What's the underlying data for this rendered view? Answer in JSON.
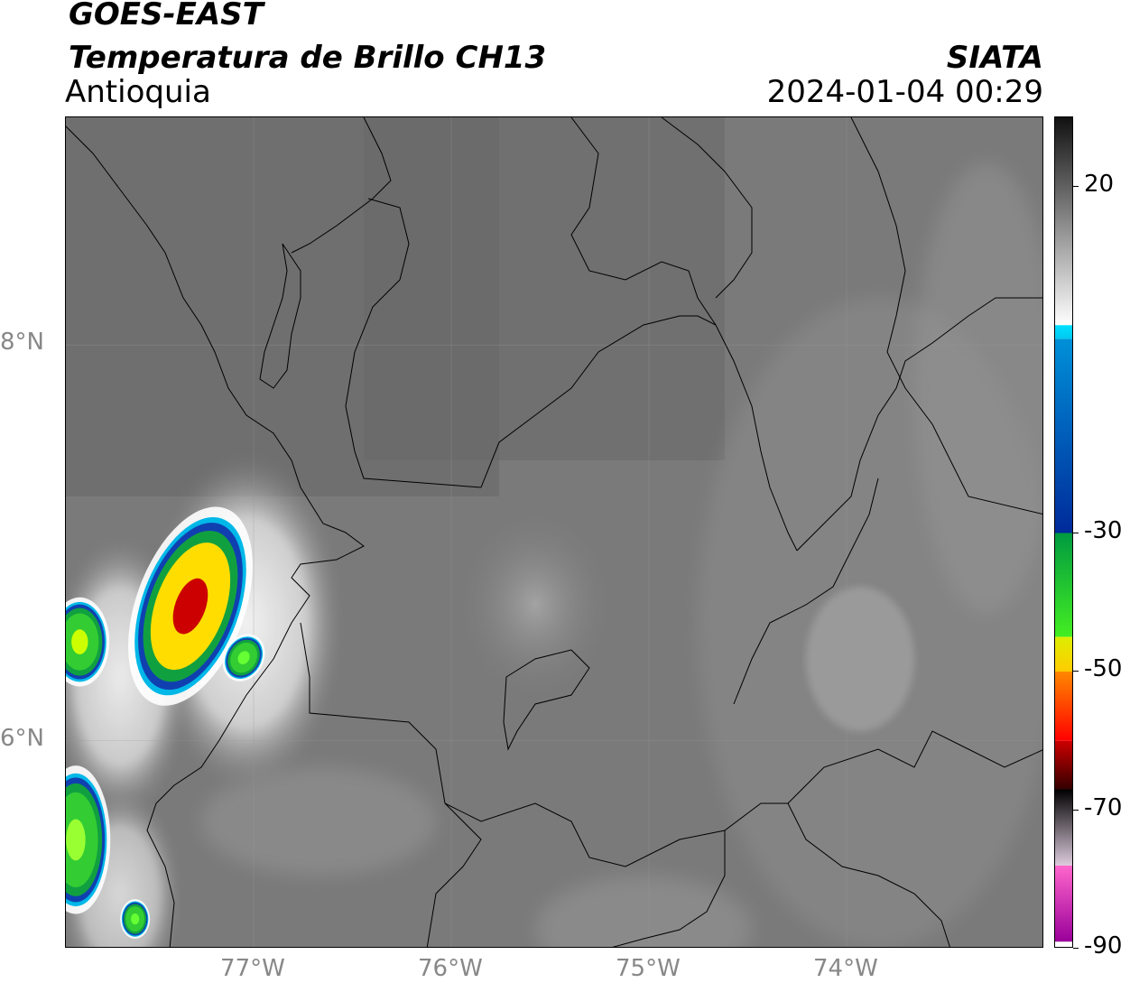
{
  "header": {
    "satellite": "GOES-EAST",
    "product": "Temperatura de Brillo CH13",
    "region": "Antioquia",
    "agency": "SIATA",
    "datetime": "2024-01-04 00:29"
  },
  "map": {
    "lon_range": [
      -77.95,
      -73.0
    ],
    "lat_range": [
      4.95,
      9.15
    ],
    "lon_ticks": [
      {
        "value": -77,
        "label": "77°W"
      },
      {
        "value": -76,
        "label": "76°W"
      },
      {
        "value": -75,
        "label": "75°W"
      },
      {
        "value": -74,
        "label": "74°W"
      }
    ],
    "lat_ticks": [
      {
        "value": 8,
        "label": "8°N"
      },
      {
        "value": 6,
        "label": "6°N"
      }
    ],
    "background_gray": "#7a7a7a",
    "convective_cells": [
      {
        "lon": -77.32,
        "lat": 6.68,
        "rx": 0.22,
        "ry": 0.42,
        "rot": 20,
        "core": "#ffdd00",
        "peak": "#cc0000"
      },
      {
        "lon": -77.88,
        "lat": 6.5,
        "rx": 0.12,
        "ry": 0.18,
        "rot": 0,
        "core": "#33cc33",
        "peak": "#ccff00"
      },
      {
        "lon": -77.05,
        "lat": 6.42,
        "rx": 0.08,
        "ry": 0.1,
        "rot": 30,
        "core": "#33cc33",
        "peak": "#66ff33"
      },
      {
        "lon": -77.9,
        "lat": 5.5,
        "rx": 0.14,
        "ry": 0.3,
        "rot": 0,
        "core": "#33cc33",
        "peak": "#99ff33"
      },
      {
        "lon": -77.6,
        "lat": 5.1,
        "rx": 0.06,
        "ry": 0.08,
        "rot": 0,
        "core": "#33cc33",
        "peak": "#66ff33"
      }
    ]
  },
  "colorbar": {
    "vmin": -90,
    "vmax": 30,
    "ticks": [
      {
        "value": 20,
        "label": "20"
      },
      {
        "value": -30,
        "label": "-30"
      },
      {
        "value": -50,
        "label": "-50"
      },
      {
        "value": -70,
        "label": "-70"
      },
      {
        "value": -90,
        "label": "-90"
      }
    ],
    "segments": [
      {
        "from": 30,
        "to": 0,
        "colors": [
          "#111111",
          "#ffffff"
        ]
      },
      {
        "from": 0,
        "to": -2,
        "colors": [
          "#00e0ff",
          "#00c8f0"
        ]
      },
      {
        "from": -2,
        "to": -30,
        "colors": [
          "#0090d8",
          "#002a9a"
        ]
      },
      {
        "from": -30,
        "to": -45,
        "colors": [
          "#009a40",
          "#44ee22"
        ]
      },
      {
        "from": -45,
        "to": -50,
        "colors": [
          "#ddee00",
          "#ffcc00"
        ]
      },
      {
        "from": -50,
        "to": -60,
        "colors": [
          "#ff8800",
          "#ff0000"
        ]
      },
      {
        "from": -60,
        "to": -67,
        "colors": [
          "#cc0000",
          "#330000"
        ]
      },
      {
        "from": -67,
        "to": -78,
        "colors": [
          "#000000",
          "#ddccdd"
        ]
      },
      {
        "from": -78,
        "to": -89,
        "colors": [
          "#ff66cc",
          "#990099"
        ]
      },
      {
        "from": -89,
        "to": -90,
        "colors": [
          "#ffffff",
          "#ffffff"
        ]
      }
    ]
  }
}
